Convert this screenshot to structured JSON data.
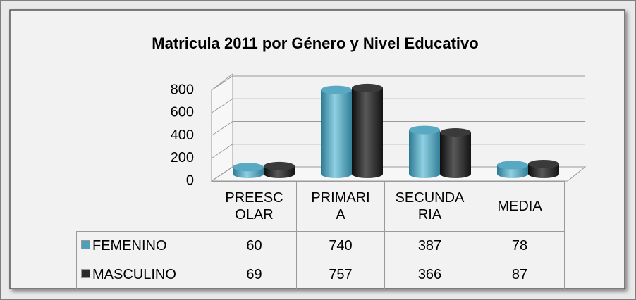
{
  "chart_data": {
    "type": "bar3d_cylinder",
    "title": "Matricula 2011 por Género y Nivel Educativo",
    "categories": [
      "PREESCOLAR",
      "PRIMARIA",
      "SECUNDARIA",
      "MEDIA"
    ],
    "series": [
      {
        "name": "FEMENINO",
        "color": "#4f9fb8",
        "values": [
          60,
          740,
          387,
          78
        ]
      },
      {
        "name": "MASCULINO",
        "color": "#2b2b2b",
        "values": [
          69,
          757,
          366,
          87
        ]
      }
    ],
    "ylim": [
      0,
      800
    ],
    "yticks": [
      0,
      200,
      400,
      600,
      800
    ],
    "grid": true,
    "data_table": true
  }
}
